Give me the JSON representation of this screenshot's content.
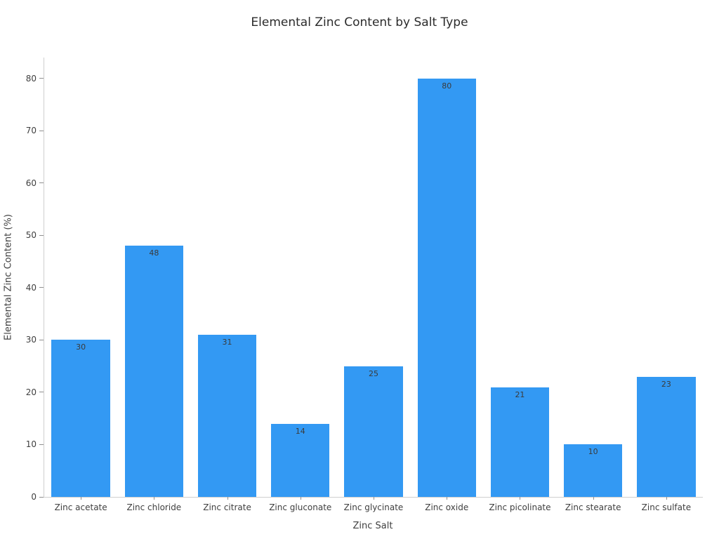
{
  "chart_data": {
    "type": "bar",
    "title": "Elemental Zinc Content by Salt Type",
    "xlabel": "Zinc Salt",
    "ylabel": "Elemental Zinc Content (%)",
    "categories": [
      "Zinc acetate",
      "Zinc chloride",
      "Zinc citrate",
      "Zinc gluconate",
      "Zinc glycinate",
      "Zinc oxide",
      "Zinc picolinate",
      "Zinc stearate",
      "Zinc sulfate"
    ],
    "values": [
      30,
      48,
      31,
      14,
      25,
      80,
      21,
      10,
      23
    ],
    "bar_labels": [
      "30",
      "48",
      "31",
      "14",
      "25",
      "80",
      "21",
      "10",
      "23"
    ],
    "yticks": [
      0,
      10,
      20,
      30,
      40,
      50,
      60,
      70,
      80
    ],
    "ylim": [
      0,
      84
    ],
    "grid": false,
    "legend": null,
    "bar_color": "#3399f3",
    "background": "#ffffff",
    "bar_width_fraction": 0.8
  }
}
